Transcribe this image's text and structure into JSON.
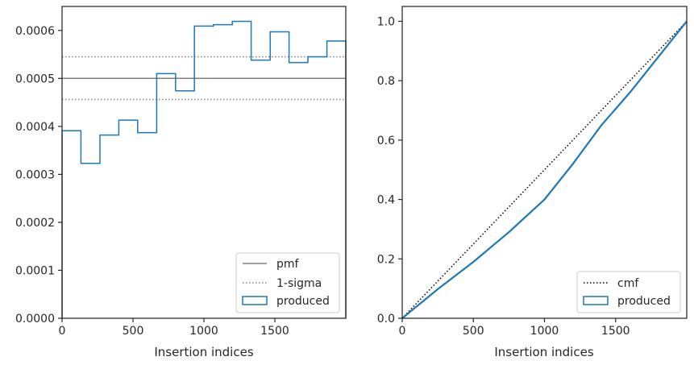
{
  "chart_data": [
    {
      "type": "histogram",
      "xlabel": "Insertion indices",
      "ylabel": "",
      "xlim": [
        0,
        2000
      ],
      "ylim": [
        0,
        0.00065
      ],
      "x_ticks": [
        0,
        500,
        1000,
        1500
      ],
      "x_tick_labels": [
        "0",
        "500",
        "1000",
        "1500"
      ],
      "y_ticks": [
        0,
        0.0001,
        0.0002,
        0.0003,
        0.0004,
        0.0005,
        0.0006
      ],
      "y_tick_labels": [
        "0.0000",
        "0.0001",
        "0.0002",
        "0.0003",
        "0.0004",
        "0.0005",
        "0.0006"
      ],
      "grid": false,
      "legend_position": "bottom-right",
      "reference_lines": [
        {
          "name": "pmf",
          "y": 0.0005,
          "style": "solid",
          "color": "#808080"
        },
        {
          "name": "1-sigma",
          "y": 0.000545,
          "style": "dotted",
          "color": "#808080"
        },
        {
          "name": "1-sigma",
          "y": 0.000456,
          "style": "dotted",
          "color": "#808080"
        }
      ],
      "series": [
        {
          "name": "produced",
          "color": "#1f77b4",
          "bin_edges": [
            0,
            133,
            267,
            400,
            533,
            667,
            800,
            933,
            1067,
            1200,
            1333,
            1467,
            1600,
            1733,
            1867,
            2000
          ],
          "values": [
            0.000391,
            0.000323,
            0.000382,
            0.000413,
            0.000387,
            0.00051,
            0.000474,
            0.000609,
            0.000612,
            0.000619,
            0.000538,
            0.000597,
            0.000533,
            0.000545,
            0.000578
          ]
        }
      ],
      "legend": [
        {
          "label": "pmf",
          "kind": "solid-line",
          "color": "#808080"
        },
        {
          "label": "1-sigma",
          "kind": "dotted-line",
          "color": "#808080"
        },
        {
          "label": "produced",
          "kind": "box",
          "color": "#1f77b4"
        }
      ]
    },
    {
      "type": "line",
      "xlabel": "Insertion indices",
      "ylabel": "",
      "xlim": [
        0,
        2000
      ],
      "ylim": [
        0,
        1.05
      ],
      "x_ticks": [
        0,
        500,
        1000,
        1500
      ],
      "x_tick_labels": [
        "0",
        "500",
        "1000",
        "1500"
      ],
      "y_ticks": [
        0,
        0.2,
        0.4,
        0.6,
        0.8,
        1.0
      ],
      "y_tick_labels": [
        "0.0",
        "0.2",
        "0.4",
        "0.6",
        "0.8",
        "1.0"
      ],
      "grid": false,
      "legend_position": "bottom-right",
      "series": [
        {
          "name": "cmf",
          "style": "dotted",
          "color": "#000000",
          "x": [
            0,
            2000
          ],
          "y": [
            0,
            1.0
          ]
        },
        {
          "name": "produced",
          "style": "solid",
          "color": "#1f77b4",
          "x": [
            0,
            250,
            500,
            750,
            1000,
            1200,
            1400,
            1600,
            1800,
            2000
          ],
          "y": [
            0,
            0.098,
            0.19,
            0.29,
            0.4,
            0.52,
            0.65,
            0.76,
            0.88,
            1.0
          ]
        }
      ],
      "legend": [
        {
          "label": "cmf",
          "kind": "dotted-line",
          "color": "#000000"
        },
        {
          "label": "produced",
          "kind": "box",
          "color": "#1f77b4"
        }
      ]
    }
  ]
}
